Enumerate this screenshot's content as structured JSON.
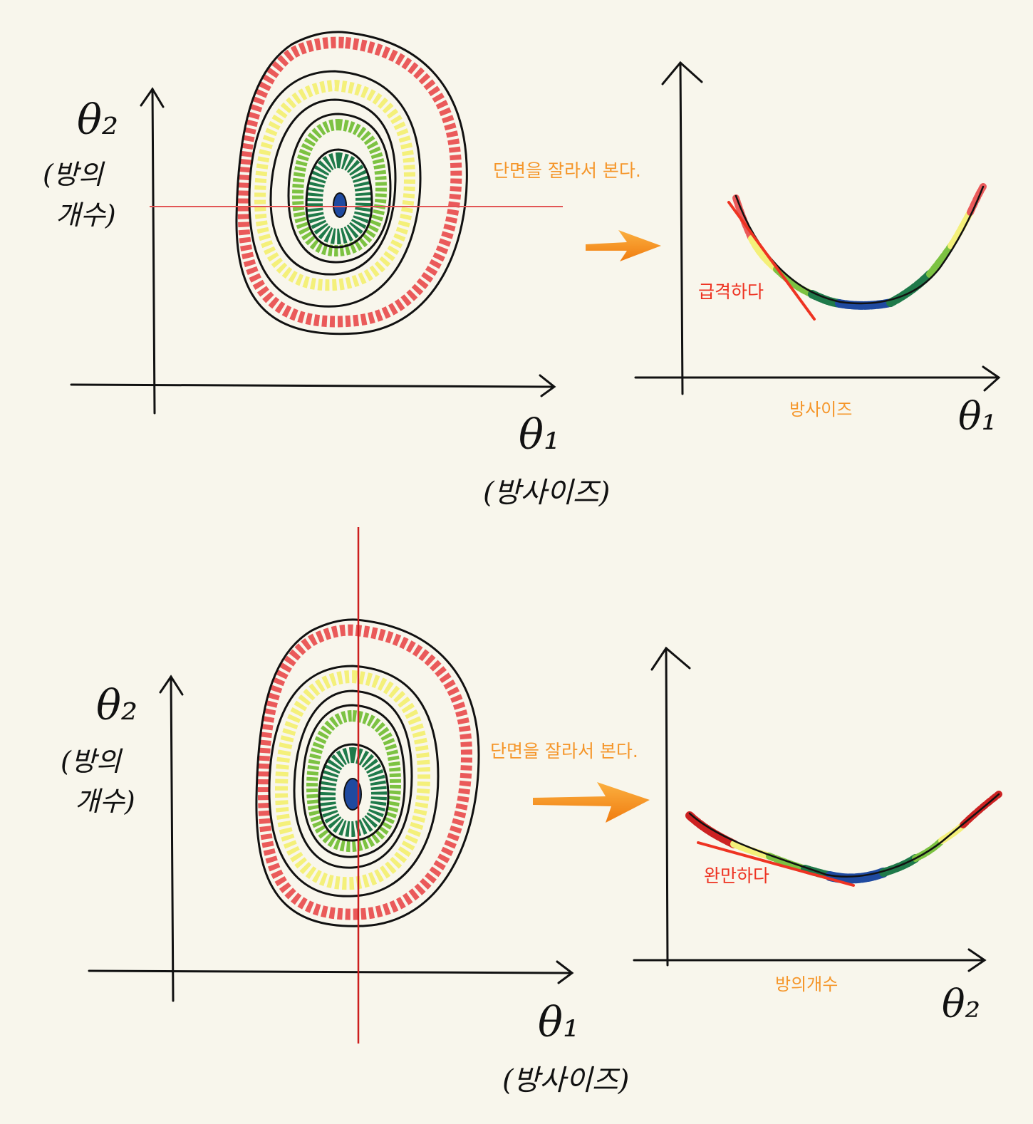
{
  "colors": {
    "background": "#f8f6ec",
    "ink": "#111111",
    "annotation_orange": "#f5962a",
    "slope_red": "#ee3322",
    "contour_red": "#ea5a5a",
    "contour_yellow": "#f4f07a",
    "contour_light_green": "#7cc242",
    "contour_dark_green": "#1f7a4a",
    "contour_blue": "#1f4aa0"
  },
  "top_panel": {
    "contour_axis_y_label": "θ₂",
    "contour_axis_y_sub_line1": "(방의",
    "contour_axis_y_sub_line2": "개수)",
    "contour_axis_x_label": "θ₁",
    "contour_axis_x_sub": "(방사이즈)",
    "slice_note": "단면을 잘라서 본다.",
    "cross_section_x_label": "θ₁",
    "cross_section_x_caption": "방사이즈",
    "slope_label": "급격하다"
  },
  "bottom_panel": {
    "contour_axis_y_label": "θ₂",
    "contour_axis_y_sub_line1": "(방의",
    "contour_axis_y_sub_line2": "개수)",
    "contour_axis_x_label": "θ₁",
    "contour_axis_x_sub": "(방사이즈)",
    "slice_note": "단면을 잘라서 본다.",
    "cross_section_x_label": "θ₂",
    "cross_section_x_caption": "방의개수",
    "slope_label": "완만하다"
  }
}
